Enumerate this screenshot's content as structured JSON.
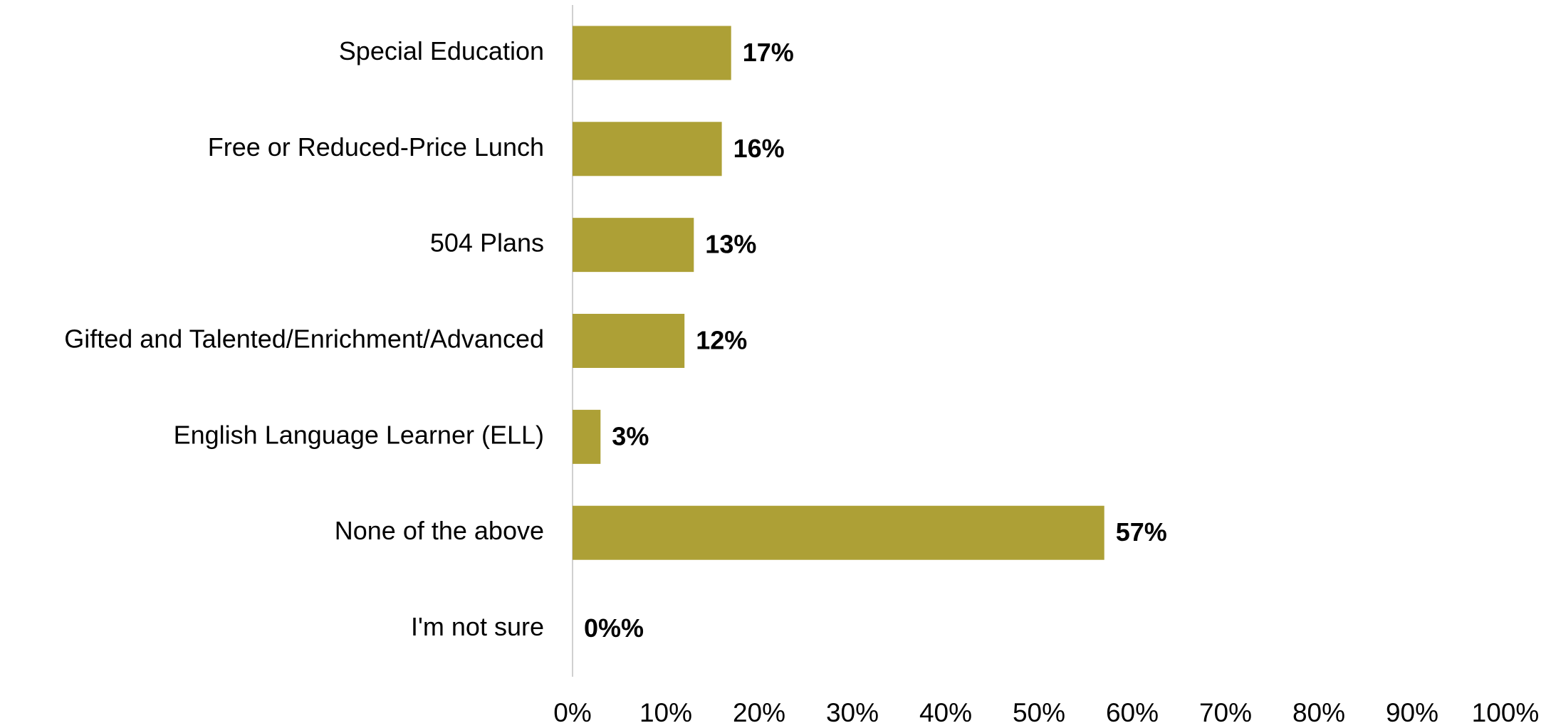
{
  "chart_data": {
    "type": "bar",
    "orientation": "horizontal",
    "categories": [
      "Special Education",
      "Free or Reduced-Price Lunch",
      "504 Plans",
      "Gifted and Talented/Enrichment/Advanced",
      "English Language Learner (ELL)",
      "None of the above",
      "I'm not sure"
    ],
    "values": [
      17,
      16,
      13,
      12,
      3,
      57,
      0
    ],
    "value_labels": [
      "17%",
      "16%",
      "13%",
      "12%",
      "3%",
      "57%",
      "0%%"
    ],
    "color": "#ada036",
    "xlim": [
      0,
      100
    ],
    "xticks": [
      {
        "value": 0,
        "label": "0%"
      },
      {
        "value": 10,
        "label": "10%"
      },
      {
        "value": 20,
        "label": "20%"
      },
      {
        "value": 30,
        "label": "30%"
      },
      {
        "value": 40,
        "label": "40%"
      },
      {
        "value": 50,
        "label": "50%"
      },
      {
        "value": 60,
        "label": "60%"
      },
      {
        "value": 70,
        "label": "70%"
      },
      {
        "value": 80,
        "label": "80%"
      },
      {
        "value": 90,
        "label": "90%"
      },
      {
        "value": 100,
        "label": "100%"
      }
    ],
    "grid": false
  }
}
